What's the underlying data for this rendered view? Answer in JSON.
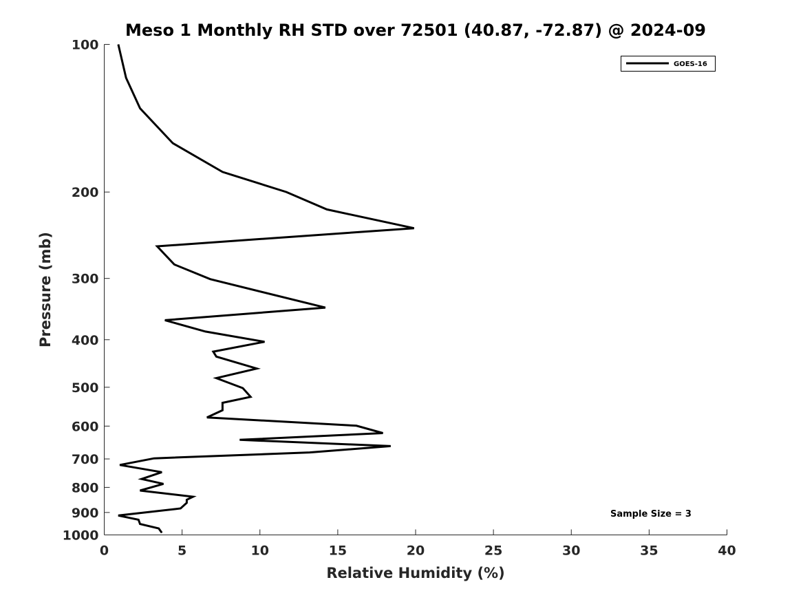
{
  "chart_data": {
    "type": "line",
    "title": "Meso 1 Monthly RH STD over 72501 (40.87, -72.87) @ 2024-09",
    "xlabel": "Relative Humidity (%)",
    "ylabel": "Pressure (mb)",
    "xlim": [
      0,
      40
    ],
    "ylim": [
      100,
      1000
    ],
    "yscale": "log",
    "yreversed": true,
    "xticks": [
      0,
      5,
      10,
      15,
      20,
      25,
      30,
      35,
      40
    ],
    "yticks": [
      100,
      200,
      300,
      400,
      500,
      600,
      700,
      800,
      900,
      1000
    ],
    "grid": false,
    "legend_position": "top-right",
    "line_color": "#000000",
    "annotation": "Sample Size = 3",
    "series": [
      {
        "name": "GOES-16",
        "x": [
          0.9,
          1.4,
          2.3,
          4.4,
          7.6,
          11.7,
          14.3,
          19.9,
          3.4,
          4.5,
          6.8,
          14.2,
          3.9,
          6.5,
          10.3,
          7.0,
          7.2,
          9.8,
          7.2,
          8.9,
          9.4,
          7.6,
          7.6,
          6.6,
          16.2,
          17.9,
          8.7,
          18.4,
          13.2,
          3.2,
          1.0,
          3.7,
          2.4,
          3.8,
          2.3,
          5.7,
          5.3,
          5.3,
          4.9,
          0.9,
          2.2,
          2.3,
          3.5,
          3.7
        ],
        "y": [
          100,
          117,
          135,
          159,
          182,
          200,
          217,
          237,
          258,
          281,
          301,
          344,
          365,
          385,
          404,
          423,
          433,
          458,
          479,
          502,
          523,
          538,
          557,
          576,
          599,
          620,
          640,
          659,
          679,
          698,
          720,
          745,
          769,
          787,
          812,
          836,
          848,
          860,
          883,
          913,
          931,
          950,
          970,
          990
        ]
      }
    ]
  }
}
